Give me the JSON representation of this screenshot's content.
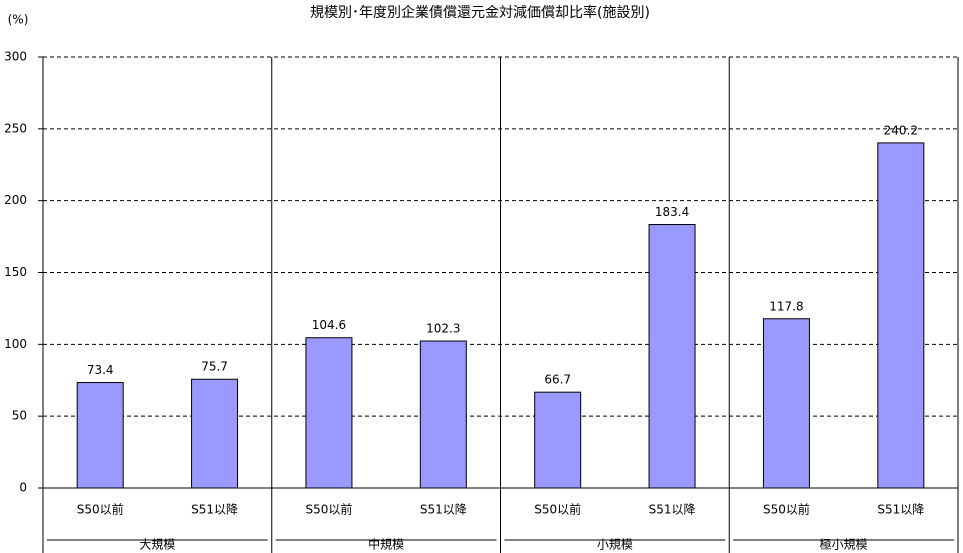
{
  "chart_data": {
    "type": "bar",
    "title": "規模別･年度別企業債償還元金対減価償却比率(施設別)",
    "y_label": "(%)",
    "categories": [
      "S50以前",
      "S51以降",
      "S50以前",
      "S51以降",
      "S50以前",
      "S51以降",
      "S50以前",
      "S51以降"
    ],
    "groups": [
      "大規模",
      "中規模",
      "小規模",
      "極小規模"
    ],
    "values": [
      73.4,
      75.7,
      104.6,
      102.3,
      66.7,
      183.4,
      117.8,
      240.2
    ],
    "color": "#9999ff",
    "ylim": [
      0,
      300
    ],
    "yticks": [
      0,
      50,
      100,
      150,
      200,
      250,
      300
    ],
    "grid": true
  }
}
